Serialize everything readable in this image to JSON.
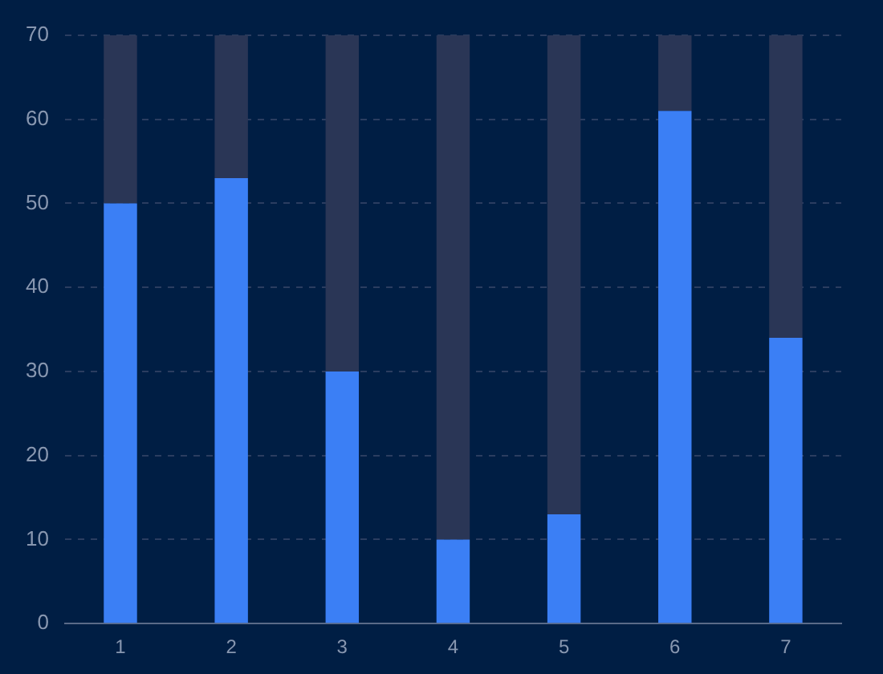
{
  "chart_data": {
    "type": "bar",
    "stacked": true,
    "categories": [
      "1",
      "2",
      "3",
      "4",
      "5",
      "6",
      "7"
    ],
    "series": [
      {
        "color": "#3b7ff5",
        "values": [
          50,
          53,
          30,
          10,
          13,
          61,
          34
        ]
      },
      {
        "color": "#2a3656",
        "values": [
          20,
          17,
          40,
          60,
          57,
          9,
          36
        ]
      }
    ],
    "ylim": [
      0,
      70
    ],
    "yticks": [
      0,
      10,
      20,
      30,
      40,
      50,
      60,
      70
    ],
    "grid": "y"
  }
}
